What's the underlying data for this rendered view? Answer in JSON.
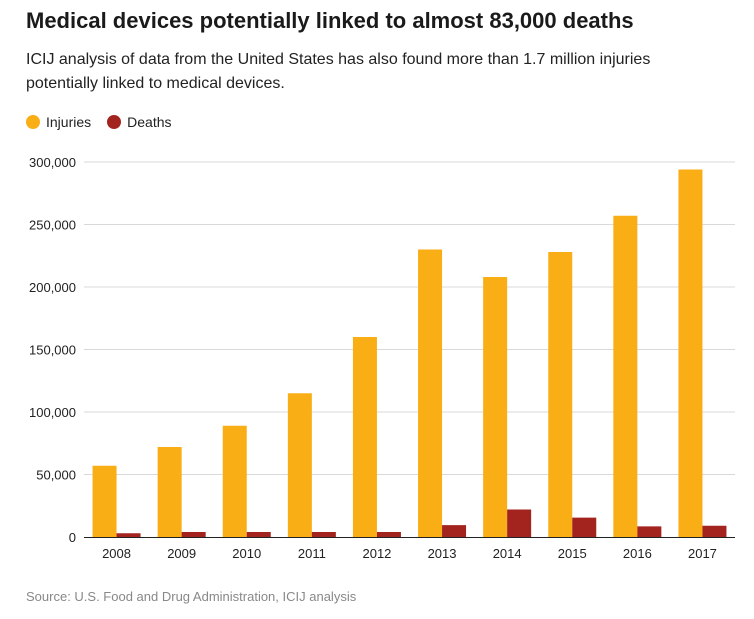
{
  "title": "Medical devices potentially linked to almost 83,000 deaths",
  "subtitle": "ICIJ analysis of data from the United States has also found more than 1.7 million injuries potentially linked to medical devices.",
  "source": "Source: U.S. Food and Drug Administration, ICIJ analysis",
  "colors": {
    "injuries": "#f9ae16",
    "deaths": "#a3241f",
    "grid": "#d9d9d9",
    "axis": "#222222"
  },
  "chart_data": {
    "type": "bar",
    "title": "Medical devices potentially linked to almost 83,000 deaths",
    "subtitle": "ICIJ analysis of data from the United States has also found more than 1.7 million injuries potentially linked to medical devices.",
    "xlabel": "",
    "ylabel": "",
    "categories": [
      "2008",
      "2009",
      "2010",
      "2011",
      "2012",
      "2013",
      "2014",
      "2015",
      "2016",
      "2017"
    ],
    "series": [
      {
        "name": "Injuries",
        "color": "#f9ae16",
        "values": [
          57000,
          72000,
          89000,
          115000,
          160000,
          230000,
          208000,
          228000,
          257000,
          294000
        ]
      },
      {
        "name": "Deaths",
        "color": "#a3241f",
        "values": [
          3000,
          4000,
          4000,
          4000,
          4000,
          9500,
          22000,
          15500,
          8500,
          9000
        ]
      }
    ],
    "ylim": [
      0,
      300000
    ],
    "yticks": [
      0,
      50000,
      100000,
      150000,
      200000,
      250000,
      300000
    ],
    "ytick_labels": [
      "0",
      "50,000",
      "100,000",
      "150,000",
      "200,000",
      "250,000",
      "300,000"
    ],
    "grid": true,
    "legend": "top-left"
  }
}
